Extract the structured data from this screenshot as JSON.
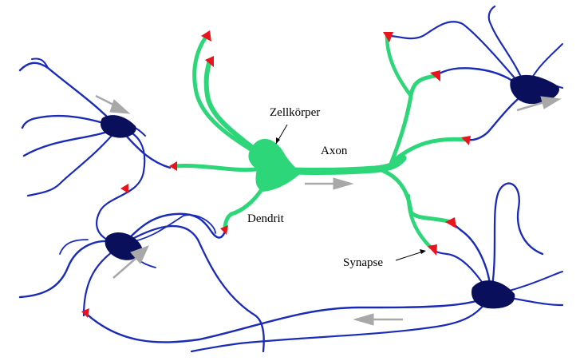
{
  "labels": {
    "cell_body": "Zellkörper",
    "axon": "Axon",
    "dendrite": "Dendrit",
    "synapse": "Synapse"
  },
  "colors": {
    "neuron_network": "#1a2bb8",
    "neuron_soma": "#0a0f5c",
    "highlighted_neuron": "#2ed67a",
    "synapse": "#e8141e",
    "signal_arrow": "#a8a8a8",
    "label_text": "#000000"
  }
}
